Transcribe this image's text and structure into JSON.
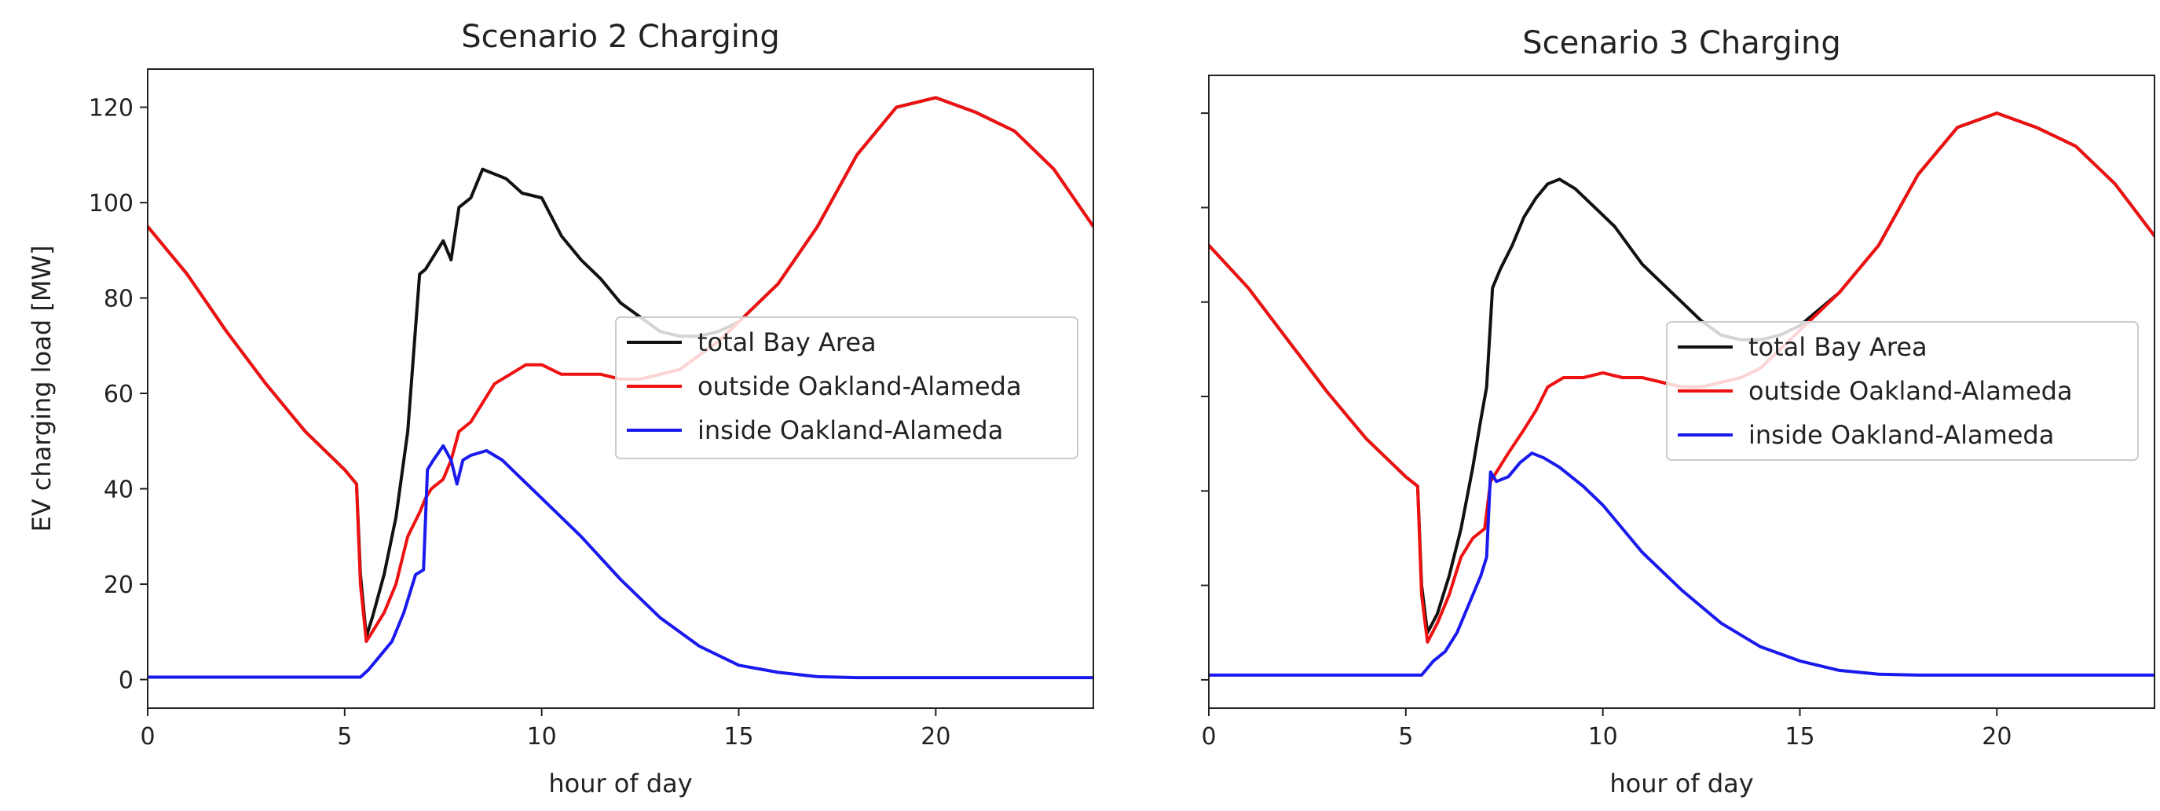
{
  "chart_data": [
    {
      "type": "line",
      "title": "Scenario 2 Charging",
      "xlabel": "hour of day",
      "ylabel": "EV charging load [MW]",
      "xlim": [
        0,
        24
      ],
      "ylim": [
        -6,
        128
      ],
      "xticks": [
        0,
        5,
        10,
        15,
        20
      ],
      "yticks": [
        0,
        20,
        40,
        60,
        80,
        100,
        120
      ],
      "tick_labels_y_visible": true,
      "legend_loc": "center-right",
      "series": [
        {
          "name": "total Bay Area",
          "color": "#111111",
          "x": [
            0,
            1,
            2,
            3,
            4,
            5,
            5.3,
            5.4,
            5.55,
            5.7,
            6.0,
            6.3,
            6.6,
            6.9,
            7.05,
            7.2,
            7.5,
            7.7,
            7.9,
            8.2,
            8.5,
            8.8,
            9.1,
            9.5,
            10,
            10.5,
            11,
            11.5,
            12,
            12.5,
            13,
            13.5,
            14,
            14.5,
            15,
            16,
            17,
            18,
            19,
            20,
            21,
            22,
            23,
            24
          ],
          "y": [
            95,
            85,
            73,
            62,
            52,
            44,
            41,
            22,
            9,
            13,
            22,
            34,
            52,
            85,
            86,
            88,
            92,
            88,
            99,
            101,
            107,
            106,
            105,
            102,
            101,
            93,
            88,
            84,
            79,
            76,
            73,
            72,
            72,
            73,
            75,
            83,
            95,
            110,
            120,
            122,
            119,
            115,
            107,
            95
          ]
        },
        {
          "name": "outside Oakland-Alameda",
          "color": "#ee1111",
          "x": [
            0,
            1,
            2,
            3,
            4,
            5,
            5.3,
            5.4,
            5.55,
            5.7,
            6.0,
            6.3,
            6.6,
            6.9,
            7.05,
            7.2,
            7.5,
            7.7,
            7.9,
            8.2,
            8.5,
            8.8,
            9.2,
            9.6,
            10,
            10.5,
            11,
            11.5,
            12,
            12.5,
            13,
            13.5,
            14,
            14.5,
            15,
            16,
            17,
            18,
            19,
            20,
            21,
            22,
            23,
            24
          ],
          "y": [
            95,
            85,
            73,
            62,
            52,
            44,
            41,
            20,
            8,
            10,
            14,
            20,
            30,
            35,
            38,
            40,
            42,
            46,
            52,
            54,
            58,
            62,
            64,
            66,
            66,
            64,
            64,
            64,
            63,
            63,
            64,
            65,
            68,
            71,
            75,
            83,
            95,
            110,
            120,
            122,
            119,
            115,
            107,
            95
          ]
        },
        {
          "name": "inside Oakland-Alameda",
          "color": "#1a1aee",
          "x": [
            0,
            1,
            2,
            3,
            4,
            5,
            5.4,
            5.6,
            5.9,
            6.2,
            6.5,
            6.8,
            7.0,
            7.1,
            7.25,
            7.5,
            7.7,
            7.85,
            8.0,
            8.2,
            8.6,
            9.0,
            9.5,
            10,
            11,
            12,
            13,
            14,
            15,
            16,
            17,
            18,
            19,
            20,
            21,
            22,
            23,
            24
          ],
          "y": [
            0.5,
            0.5,
            0.5,
            0.5,
            0.5,
            0.5,
            0.5,
            2,
            5,
            8,
            14,
            22,
            23,
            44,
            46,
            49,
            46,
            41,
            46,
            47,
            48,
            46,
            42,
            38,
            30,
            21,
            13,
            7,
            3,
            1.5,
            0.6,
            0.4,
            0.4,
            0.4,
            0.4,
            0.4,
            0.4,
            0.4
          ]
        }
      ]
    },
    {
      "type": "line",
      "title": "Scenario 3 Charging",
      "xlabel": "hour of day",
      "ylabel": "",
      "xlim": [
        0,
        24
      ],
      "ylim": [
        -6,
        128
      ],
      "xticks": [
        0,
        5,
        10,
        15,
        20
      ],
      "yticks": [
        0,
        20,
        40,
        60,
        80,
        100,
        120
      ],
      "tick_labels_y_visible": false,
      "legend_loc": "center-right",
      "series": [
        {
          "name": "total Bay Area",
          "color": "#111111",
          "x": [
            0,
            1,
            2,
            3,
            4,
            5,
            5.3,
            5.4,
            5.55,
            5.8,
            6.1,
            6.4,
            6.7,
            6.9,
            7.05,
            7.2,
            7.4,
            7.7,
            8.0,
            8.3,
            8.6,
            8.9,
            9.3,
            9.8,
            10.3,
            11,
            11.5,
            12,
            12.5,
            13,
            13.5,
            14,
            14.5,
            15,
            16,
            17,
            18,
            19,
            20,
            21,
            22,
            23,
            24
          ],
          "y": [
            92,
            83,
            72,
            61,
            51,
            43,
            41,
            20,
            10,
            14,
            22,
            32,
            45,
            55,
            62,
            83,
            87,
            92,
            98,
            102,
            105,
            106,
            104,
            100,
            96,
            88,
            84,
            80,
            76,
            73,
            72,
            72,
            73,
            75,
            82,
            92,
            107,
            117,
            120,
            117,
            113,
            105,
            94
          ]
        },
        {
          "name": "outside Oakland-Alameda",
          "color": "#ee1111",
          "x": [
            0,
            1,
            2,
            3,
            4,
            5,
            5.3,
            5.4,
            5.55,
            5.8,
            6.1,
            6.4,
            6.7,
            7.0,
            7.15,
            7.3,
            7.6,
            8.0,
            8.3,
            8.6,
            9.0,
            9.5,
            10,
            10.5,
            11,
            11.5,
            12,
            12.5,
            13,
            13.5,
            14,
            14.5,
            15,
            16,
            17,
            18,
            19,
            20,
            21,
            22,
            23,
            24
          ],
          "y": [
            92,
            83,
            72,
            61,
            51,
            43,
            41,
            18,
            8,
            12,
            18,
            26,
            30,
            32,
            42,
            44,
            48,
            53,
            57,
            62,
            64,
            64,
            65,
            64,
            64,
            63,
            62,
            62,
            63,
            64,
            66,
            70,
            74,
            82,
            92,
            107,
            117,
            120,
            117,
            113,
            105,
            94
          ]
        },
        {
          "name": "inside Oakland-Alameda",
          "color": "#1a1aee",
          "x": [
            0,
            1,
            2,
            3,
            4,
            5,
            5.4,
            5.7,
            6.0,
            6.3,
            6.6,
            6.9,
            7.05,
            7.15,
            7.3,
            7.6,
            7.9,
            8.2,
            8.5,
            8.9,
            9.5,
            10,
            11,
            12,
            13,
            14,
            15,
            16,
            17,
            18,
            19,
            20,
            21,
            22,
            23,
            24
          ],
          "y": [
            1,
            1,
            1,
            1,
            1,
            1,
            1,
            4,
            6,
            10,
            16,
            22,
            26,
            44,
            42,
            43,
            46,
            48,
            47,
            45,
            41,
            37,
            27,
            19,
            12,
            7,
            4,
            2,
            1.2,
            1,
            1,
            1,
            1,
            1,
            1,
            1
          ]
        }
      ]
    }
  ]
}
